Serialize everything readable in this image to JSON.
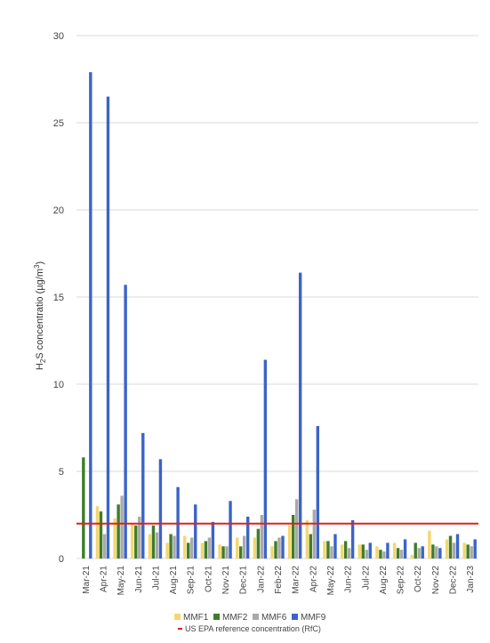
{
  "chart_data": {
    "type": "bar",
    "ylabel": {
      "pre": "H",
      "sub": "2",
      "mid": "S concentratio (µg/m",
      "sup": "3",
      "post": ")"
    },
    "ylim": [
      0,
      30
    ],
    "yticks": [
      0,
      5,
      10,
      15,
      20,
      25,
      30
    ],
    "grid": "horizontal",
    "legend_position": "bottom",
    "categories": [
      "Mar-21",
      "Apr-21",
      "May-21",
      "Jun-21",
      "Jul-21",
      "Aug-21",
      "Sep-21",
      "Oct-21",
      "Nov-21",
      "Dec-21",
      "Jan-22",
      "Feb-22",
      "Mar-22",
      "Apr-22",
      "May-22",
      "Jun-22",
      "Jul-22",
      "Aug-22",
      "Sep-22",
      "Oct-22",
      "Nov-22",
      "Dec-22",
      "Jan-23"
    ],
    "series": [
      {
        "name": "MMF1",
        "color": "#f5d76e",
        "values": [
          0,
          3.0,
          2.3,
          2.0,
          1.4,
          0.9,
          1.3,
          0.9,
          0.8,
          1.2,
          1.2,
          0.7,
          1.9,
          2.2,
          1.0,
          0.8,
          0.8,
          0.7,
          0.9,
          0.2,
          1.6,
          1.1,
          0.9
        ]
      },
      {
        "name": "MMF2",
        "color": "#3e7d2a",
        "values": [
          5.8,
          2.7,
          3.1,
          1.9,
          1.9,
          1.4,
          0.9,
          1.0,
          0.7,
          0.7,
          1.7,
          1.0,
          2.5,
          1.4,
          1.0,
          1.0,
          0.8,
          0.5,
          0.6,
          0.9,
          0.8,
          1.3,
          0.8
        ]
      },
      {
        "name": "MMF6",
        "color": "#a9a9a9",
        "values": [
          0,
          1.4,
          3.6,
          2.4,
          1.5,
          1.3,
          1.2,
          1.2,
          0.7,
          1.3,
          2.5,
          1.2,
          3.4,
          2.8,
          0.7,
          0.6,
          0.5,
          0.4,
          0.5,
          0.6,
          0.7,
          0.9,
          0.7
        ]
      },
      {
        "name": "MMF9",
        "color": "#3b64c8",
        "values": [
          27.9,
          26.5,
          15.7,
          7.2,
          5.7,
          4.1,
          3.1,
          2.1,
          3.3,
          2.4,
          11.4,
          1.3,
          16.4,
          7.6,
          1.4,
          2.2,
          0.9,
          0.9,
          1.1,
          0.7,
          0.6,
          1.4,
          1.1
        ]
      }
    ],
    "reference_line": {
      "name": "US EPA reference concentration (RfC)",
      "value": 2.0,
      "color": "#e02020"
    }
  }
}
